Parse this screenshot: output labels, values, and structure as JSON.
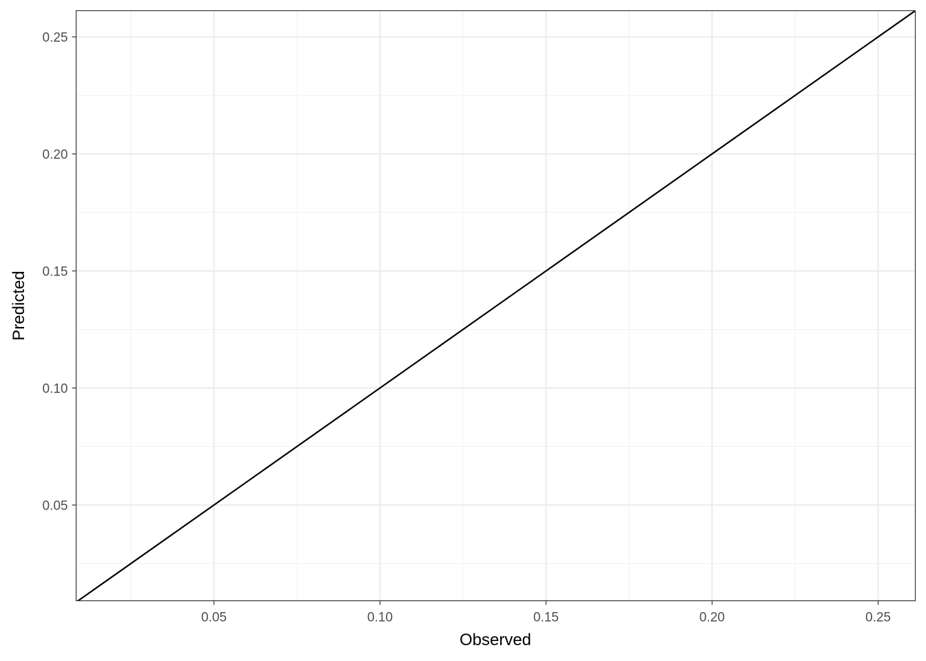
{
  "chart_data": {
    "type": "line",
    "title": "",
    "xlabel": "Observed",
    "ylabel": "Predicted",
    "xlim": [
      0.0085,
      0.2612
    ],
    "ylim": [
      0.0091,
      0.2612
    ],
    "x_ticks": [
      "0.05",
      "0.10",
      "0.15",
      "0.20",
      "0.25"
    ],
    "x_tick_values": [
      0.05,
      0.1,
      0.15,
      0.2,
      0.25
    ],
    "y_ticks": [
      "0.05",
      "0.10",
      "0.15",
      "0.20",
      "0.25"
    ],
    "y_tick_values": [
      0.05,
      0.1,
      0.15,
      0.2,
      0.25
    ],
    "grid": true,
    "theme": "black-and-white",
    "series": [
      {
        "x": [
          0.0,
          0.3
        ],
        "y": [
          0.0,
          0.3
        ],
        "color": "#000000"
      }
    ]
  }
}
